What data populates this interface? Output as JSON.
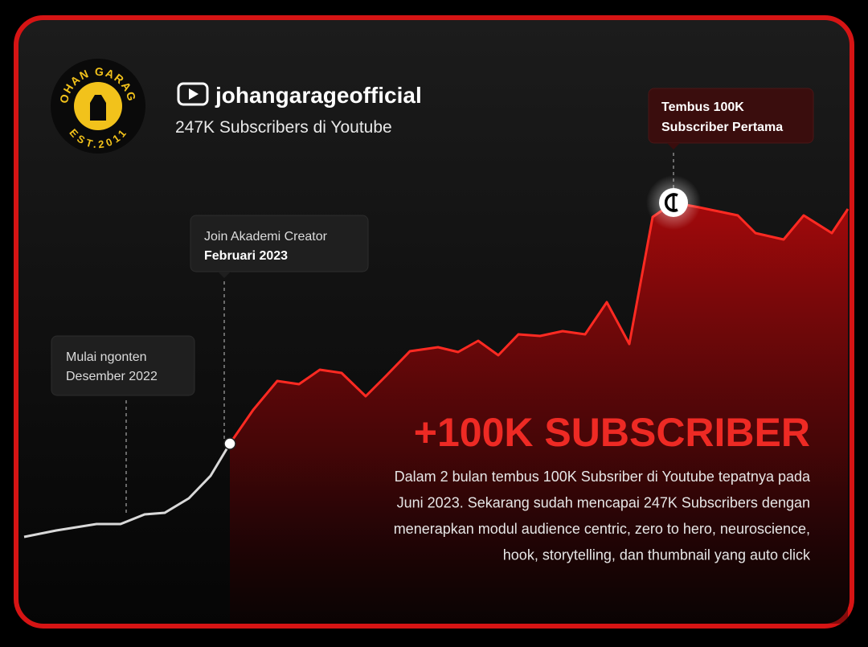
{
  "logo": {
    "name": "JOHAN GARAGE",
    "since": "EST.2011"
  },
  "channel": {
    "name": "johangarageofficial",
    "subscribers": "247K Subscribers di Youtube"
  },
  "milestones": [
    {
      "line1": "Mulai ngonten",
      "line2": "Desember 2022"
    },
    {
      "line1": "Join Akademi Creator",
      "line2": "Februari 2023"
    },
    {
      "line1": "Tembus 100K",
      "line2": "Subscriber Pertama"
    }
  ],
  "headline": "+100K SUBSCRIBER",
  "description": [
    "Dalam 2 bulan tembus 100K Subsriber di Youtube tepatnya pada",
    "Juni 2023. Sekarang sudah mencapai 247K Subscribers dengan",
    "menerapkan modul audience centric, zero to hero, neuroscience,",
    "hook, storytelling, dan thumbnail yang auto click"
  ]
}
